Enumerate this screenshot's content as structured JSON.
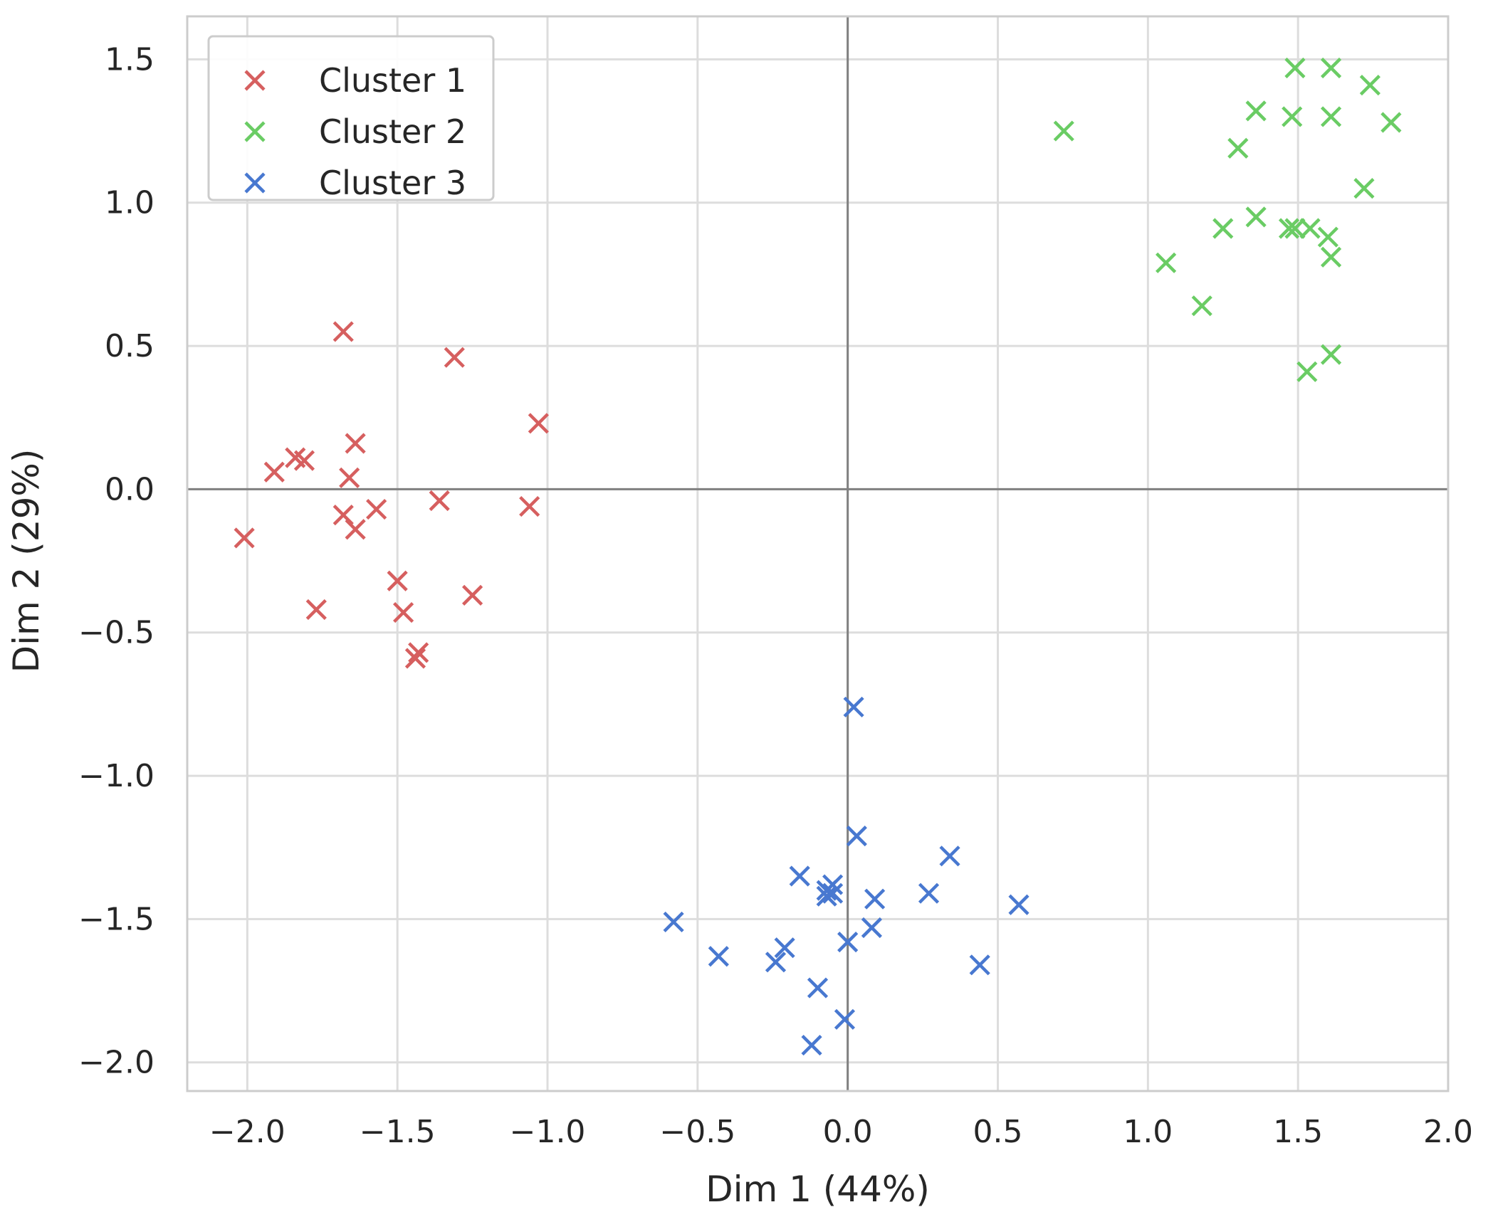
{
  "chart_data": {
    "type": "scatter",
    "title": "",
    "xlabel": "Dim 1 (44%)",
    "ylabel": "Dim 2 (29%)",
    "xlim": [
      -2.2,
      2.0
    ],
    "ylim": [
      -2.1,
      1.65
    ],
    "xticks": [
      -2.0,
      -1.5,
      -1.0,
      -0.5,
      0.0,
      0.5,
      1.0,
      1.5,
      2.0
    ],
    "xtick_labels": [
      "−2.0",
      "−1.5",
      "−1.0",
      "−0.5",
      "0.0",
      "0.5",
      "1.0",
      "1.5",
      "2.0"
    ],
    "yticks": [
      1.5,
      1.0,
      0.5,
      0.0,
      -0.5,
      -1.0,
      -1.5,
      -2.0
    ],
    "ytick_labels": [
      "1.5",
      "1.0",
      "0.5",
      "0.0",
      "−0.5",
      "−1.0",
      "−1.5",
      "−2.0"
    ],
    "grid": true,
    "zero_lines": true,
    "legend_position": "top-left",
    "marker": "x",
    "series": [
      {
        "name": "Cluster 1",
        "color": "#d65f5f",
        "points": [
          [
            -1.68,
            0.55
          ],
          [
            -1.31,
            0.46
          ],
          [
            -1.03,
            0.23
          ],
          [
            -1.64,
            0.16
          ],
          [
            -1.84,
            0.11
          ],
          [
            -1.81,
            0.1
          ],
          [
            -1.91,
            0.06
          ],
          [
            -1.66,
            0.04
          ],
          [
            -1.36,
            -0.04
          ],
          [
            -1.57,
            -0.07
          ],
          [
            -1.06,
            -0.06
          ],
          [
            -1.68,
            -0.09
          ],
          [
            -1.64,
            -0.14
          ],
          [
            -2.01,
            -0.17
          ],
          [
            -1.5,
            -0.32
          ],
          [
            -1.25,
            -0.37
          ],
          [
            -1.77,
            -0.42
          ],
          [
            -1.48,
            -0.43
          ],
          [
            -1.43,
            -0.57
          ],
          [
            -1.44,
            -0.59
          ]
        ]
      },
      {
        "name": "Cluster 2",
        "color": "#6acc64",
        "points": [
          [
            1.49,
            1.47
          ],
          [
            1.61,
            1.47
          ],
          [
            1.74,
            1.41
          ],
          [
            1.36,
            1.32
          ],
          [
            1.48,
            1.3
          ],
          [
            1.61,
            1.3
          ],
          [
            1.81,
            1.28
          ],
          [
            0.72,
            1.25
          ],
          [
            1.3,
            1.19
          ],
          [
            1.72,
            1.05
          ],
          [
            1.36,
            0.95
          ],
          [
            1.25,
            0.91
          ],
          [
            1.47,
            0.91
          ],
          [
            1.49,
            0.91
          ],
          [
            1.54,
            0.91
          ],
          [
            1.6,
            0.88
          ],
          [
            1.61,
            0.81
          ],
          [
            1.06,
            0.79
          ],
          [
            1.18,
            0.64
          ],
          [
            1.61,
            0.47
          ],
          [
            1.53,
            0.41
          ]
        ]
      },
      {
        "name": "Cluster 3",
        "color": "#4878d0",
        "points": [
          [
            0.02,
            -0.76
          ],
          [
            0.03,
            -1.21
          ],
          [
            0.34,
            -1.28
          ],
          [
            -0.16,
            -1.35
          ],
          [
            -0.05,
            -1.38
          ],
          [
            -0.07,
            -1.4
          ],
          [
            -0.05,
            -1.41
          ],
          [
            -0.07,
            -1.42
          ],
          [
            0.27,
            -1.41
          ],
          [
            0.09,
            -1.43
          ],
          [
            0.57,
            -1.45
          ],
          [
            -0.58,
            -1.51
          ],
          [
            0.08,
            -1.53
          ],
          [
            0.0,
            -1.58
          ],
          [
            -0.21,
            -1.6
          ],
          [
            -0.43,
            -1.63
          ],
          [
            -0.24,
            -1.65
          ],
          [
            0.44,
            -1.66
          ],
          [
            -0.1,
            -1.74
          ],
          [
            -0.01,
            -1.85
          ],
          [
            -0.12,
            -1.94
          ]
        ]
      }
    ]
  }
}
